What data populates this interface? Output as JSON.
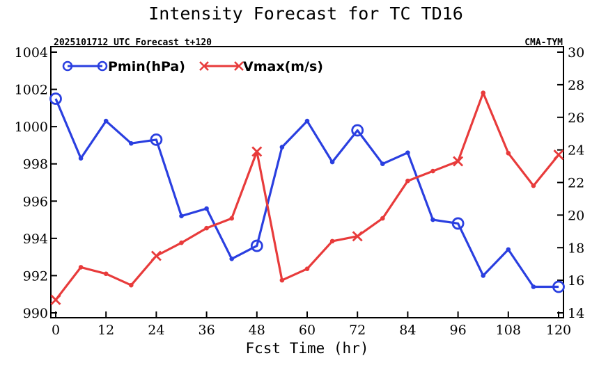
{
  "chart_data": {
    "type": "line",
    "title": "Intensity Forecast for TC TD16",
    "subtitle_left": "2025101712 UTC Forecast t+120",
    "subtitle_right": "CMA-TYM",
    "xlabel": "Fcst Time (hr)",
    "x": [
      0,
      6,
      12,
      18,
      24,
      30,
      36,
      42,
      48,
      54,
      60,
      66,
      72,
      78,
      84,
      90,
      96,
      102,
      108,
      114,
      120
    ],
    "xticks": [
      0,
      12,
      24,
      36,
      48,
      60,
      72,
      84,
      96,
      108,
      120
    ],
    "xlim": [
      0,
      120
    ],
    "left_axis": {
      "ylim": [
        990,
        1004
      ],
      "ticks": [
        990,
        992,
        994,
        996,
        998,
        1000,
        1002,
        1004
      ]
    },
    "right_axis": {
      "ylim": [
        14,
        30
      ],
      "ticks": [
        14,
        16,
        18,
        20,
        22,
        24,
        26,
        28,
        30
      ]
    },
    "series": [
      {
        "name": "Pmin(hPa)",
        "axis": "left",
        "color": "#2a3fe0",
        "marker": "circle",
        "values": [
          1001.5,
          998.3,
          1000.3,
          999.1,
          999.3,
          995.2,
          995.6,
          992.9,
          993.6,
          998.9,
          1000.3,
          998.1,
          999.8,
          998.0,
          998.6,
          995.0,
          994.8,
          992.0,
          993.4,
          991.4,
          991.4
        ]
      },
      {
        "name": "Vmax(m/s)",
        "axis": "right",
        "color": "#e83b3b",
        "marker": "x",
        "values": [
          14.8,
          16.8,
          16.4,
          15.7,
          17.5,
          18.3,
          19.2,
          19.8,
          23.9,
          16.0,
          16.7,
          18.4,
          18.7,
          19.8,
          22.1,
          22.7,
          23.3,
          27.5,
          23.8,
          21.8,
          23.7
        ]
      }
    ]
  }
}
